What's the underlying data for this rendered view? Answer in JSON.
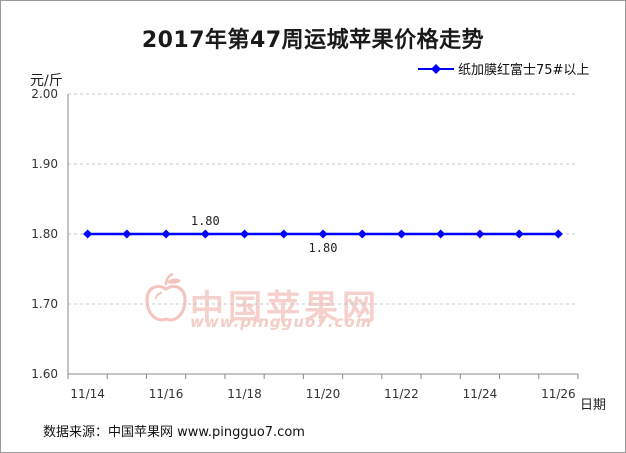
{
  "chart_data": {
    "type": "line",
    "title": "2017年第47周运城苹果价格走势",
    "ylabel": "元/斤",
    "xlabel": "日期",
    "x_tick_labels": [
      "11/14",
      "11/16",
      "11/18",
      "11/20",
      "11/22",
      "11/24",
      "11/26"
    ],
    "x": [
      "11/14",
      "11/15",
      "11/16",
      "11/17",
      "11/18",
      "11/19",
      "11/20",
      "11/21",
      "11/22",
      "11/23",
      "11/24",
      "11/25",
      "11/26"
    ],
    "series": [
      {
        "name": "纸加膜红富士75#以上",
        "color": "#0000ff",
        "values": [
          1.8,
          1.8,
          1.8,
          1.8,
          1.8,
          1.8,
          1.8,
          1.8,
          1.8,
          1.8,
          1.8,
          1.8,
          1.8
        ]
      }
    ],
    "y_ticks": [
      "1.60",
      "1.70",
      "1.80",
      "1.90",
      "2.00"
    ],
    "ylim": [
      1.6,
      2.0
    ],
    "grid": "horizontal-dashed",
    "legend_position": "top-right",
    "data_labels": [
      {
        "x": "11/17",
        "text": "1.80",
        "position": "above"
      },
      {
        "x": "11/20",
        "text": "1.80",
        "position": "below"
      }
    ]
  },
  "source": {
    "text": "数据来源：中国苹果网 www.pingguo7.com"
  },
  "watermark": {
    "name": "中国苹果网",
    "url": "www.pingguo7.com",
    "icon": "apple-logo-icon"
  }
}
